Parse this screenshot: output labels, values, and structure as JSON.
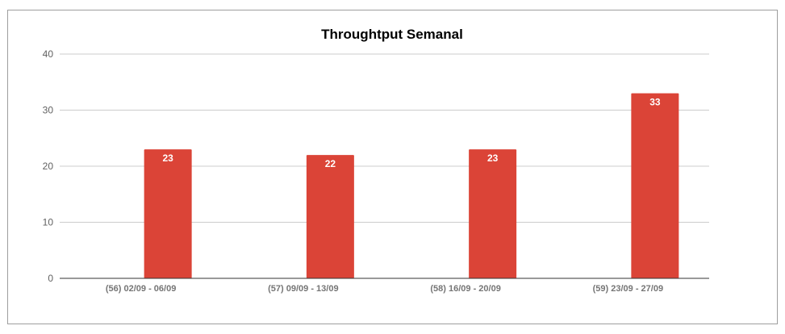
{
  "chart_data": {
    "type": "bar",
    "title": "Throughtput Semanal",
    "xlabel": "",
    "ylabel": "",
    "categories": [
      "(56) 02/09 - 06/09",
      "(57) 09/09 - 13/09",
      "(58) 16/09 - 20/09",
      "(59) 23/09 - 27/09"
    ],
    "values": [
      23,
      22,
      23,
      33
    ],
    "data_labels": [
      "23",
      "22",
      "23",
      "33"
    ],
    "ylim": [
      0,
      40
    ],
    "yticks": [
      0,
      10,
      20,
      30,
      40
    ],
    "ytick_labels": [
      "0",
      "10",
      "20",
      "30",
      "40"
    ],
    "grid": true,
    "legend": "none",
    "bar_color": "#db4437",
    "grid_color": "#cccccc",
    "axis_color": "#333333"
  }
}
